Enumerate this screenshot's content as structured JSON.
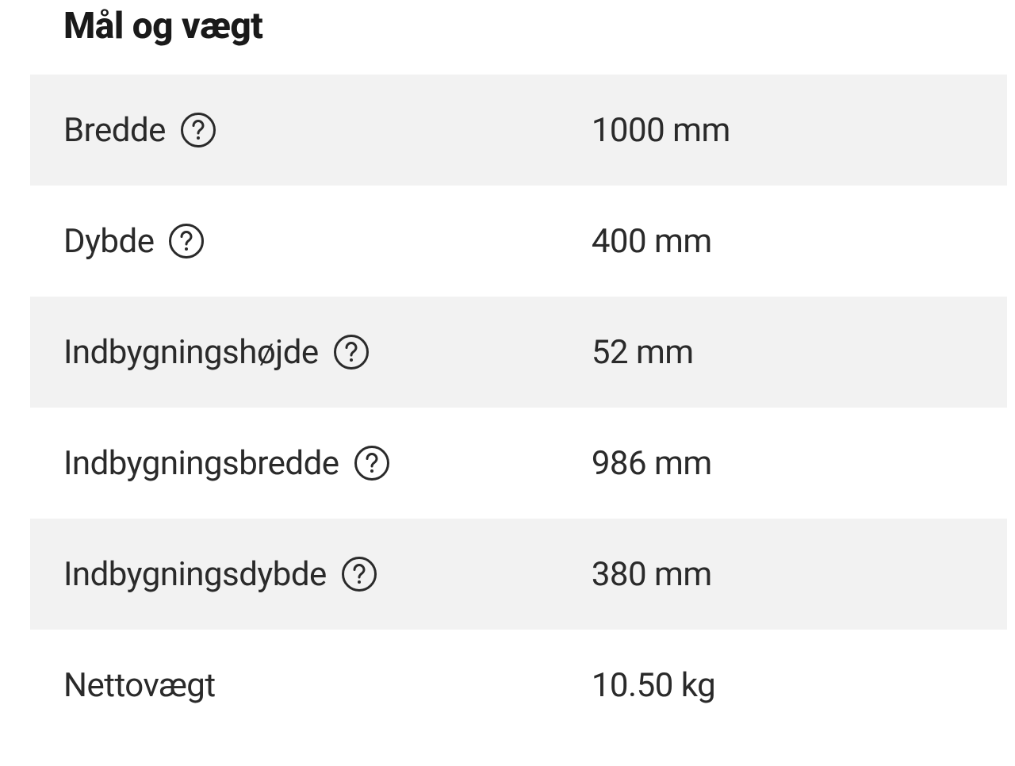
{
  "section": {
    "title": "Mål og vægt"
  },
  "specs": {
    "rows": [
      {
        "label": "Bredde",
        "value": "1000 mm",
        "has_help": true,
        "alt": true
      },
      {
        "label": "Dybde",
        "value": "400 mm",
        "has_help": true,
        "alt": false
      },
      {
        "label": "Indbygningshøjde",
        "value": "52 mm",
        "has_help": true,
        "alt": true
      },
      {
        "label": "Indbygningsbredde",
        "value": "986 mm",
        "has_help": true,
        "alt": false
      },
      {
        "label": "Indbygningsdybde",
        "value": "380 mm",
        "has_help": true,
        "alt": true
      },
      {
        "label": "Nettovægt",
        "value": "10.50 kg",
        "has_help": false,
        "alt": false
      }
    ]
  },
  "colors": {
    "text": "#2a2a2a",
    "title": "#1a1a1a",
    "row_alt_bg": "#f2f2f2",
    "row_bg": "#ffffff",
    "icon_stroke": "#2a2a2a"
  },
  "typography": {
    "title_fontsize": 46,
    "title_fontweight": 800,
    "body_fontsize": 42,
    "body_fontweight": 400
  }
}
